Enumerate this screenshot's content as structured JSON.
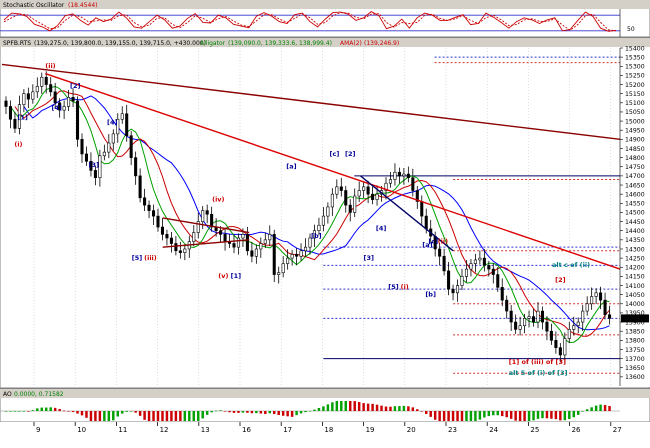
{
  "panels": {
    "stochastic": {
      "title": "Stochastic Oscillator",
      "value": "(18.4544)",
      "levels": [
        "50"
      ],
      "k_line": [
        62,
        88,
        85,
        75,
        45,
        35,
        20,
        40,
        78,
        85,
        60,
        42,
        70,
        55,
        65,
        92,
        70,
        35,
        30,
        55,
        80,
        62,
        30,
        38,
        68,
        86,
        52,
        50,
        80,
        70,
        45,
        38,
        32,
        76,
        90,
        76,
        55,
        48,
        82,
        88,
        55,
        35,
        65,
        90,
        92,
        84,
        60,
        70,
        94,
        78,
        28,
        38,
        65,
        30,
        70,
        88,
        80,
        60,
        60,
        72,
        82,
        44,
        48,
        88,
        72,
        52,
        30,
        55,
        70,
        62,
        48,
        62,
        70,
        20,
        25,
        60,
        92,
        75,
        30,
        18,
        22
      ],
      "d_line": [
        55,
        70,
        85,
        82,
        62,
        45,
        28,
        32,
        60,
        80,
        75,
        55,
        58,
        62,
        60,
        78,
        82,
        52,
        35,
        42,
        68,
        70,
        45,
        32,
        52,
        78,
        68,
        52,
        66,
        75,
        58,
        42,
        36,
        58,
        82,
        82,
        65,
        52,
        68,
        85,
        70,
        45,
        52,
        78,
        90,
        88,
        72,
        66,
        84,
        86,
        52,
        34,
        52,
        48,
        52,
        80,
        84,
        68,
        60,
        66,
        78,
        60,
        48,
        70,
        80,
        62,
        40,
        44,
        62,
        66,
        56,
        56,
        66,
        42,
        22,
        44,
        78,
        84,
        52,
        24,
        20
      ]
    },
    "price": {
      "symbol": "SPFB.RTS",
      "ohlc": "(139,275.0, 139,800.0, 139,155.0, 139,715.0, +430.000)",
      "indicators": [
        {
          "name": "Alligator",
          "value": "(139,090.0, 139,333.6, 138,999.4)",
          "color": "#008000"
        },
        {
          "name": "AMA(2)",
          "value": "(139,246.9)",
          "color": "#cc0000"
        }
      ]
    },
    "ao": {
      "title": "AO",
      "values": "0.0000, 0.71582"
    }
  },
  "chart_data": {
    "type": "candlestick",
    "x_ticks": [
      "9",
      "10",
      "11",
      "12",
      "13",
      "16",
      "17",
      "18",
      "19",
      "20",
      "23",
      "24",
      "25",
      "26",
      "27"
    ],
    "price_axis": {
      "min": 13550,
      "max": 15400,
      "step": 50
    },
    "price_ticks": [
      15400,
      15350,
      15300,
      15250,
      15200,
      15150,
      15100,
      15050,
      15000,
      14950,
      14900,
      14850,
      14800,
      14750,
      14700,
      14650,
      14600,
      14550,
      14500,
      14450,
      14400,
      14350,
      14300,
      14250,
      14200,
      14150,
      14100,
      14050,
      14000,
      13950,
      13900,
      13850,
      13800,
      13750,
      13700,
      13650,
      13600
    ],
    "closes": [
      15080,
      15010,
      14960,
      15090,
      15150,
      15120,
      15160,
      15190,
      15240,
      15200,
      15160,
      15100,
      15060,
      15080,
      15130,
      15110,
      14900,
      14820,
      14780,
      14730,
      14690,
      14810,
      14830,
      14880,
      14930,
      15010,
      15040,
      14920,
      14800,
      14700,
      14580,
      14540,
      14510,
      14480,
      14420,
      14380,
      14360,
      14330,
      14290,
      14280,
      14300,
      14340,
      14390,
      14450,
      14510,
      14490,
      14420,
      14400,
      14380,
      14340,
      14330,
      14310,
      14360,
      14380,
      14290,
      14260,
      14300,
      14330,
      14350,
      14380,
      14160,
      14170,
      14220,
      14250,
      14270,
      14260,
      14290,
      14310,
      14360,
      14400,
      14430,
      14480,
      14530,
      14600,
      14640,
      14620,
      14540,
      14500,
      14590,
      14620,
      14640,
      14600,
      14570,
      14600,
      14620,
      14660,
      14680,
      14720,
      14700,
      14710,
      14690,
      14620,
      14560,
      14480,
      14410,
      14370,
      14300,
      14260,
      14180,
      14080,
      14060,
      14100,
      14150,
      14190,
      14220,
      14240,
      14250,
      14210,
      14190,
      14160,
      14090,
      14020,
      13960,
      13900,
      13860,
      13880,
      13920,
      13930,
      13900,
      13960,
      13900,
      13850,
      13800,
      13760,
      13720,
      13810,
      13860,
      13880,
      13900,
      13960,
      14000,
      14040,
      14060,
      14020,
      13940,
      13920
    ],
    "fib_levels": [
      {
        "price": 15350,
        "color": "#3333cc",
        "style": "dashed",
        "from": 0.7
      },
      {
        "price": 15320,
        "color": "#cc3333",
        "style": "dashed",
        "from": 0.7
      },
      {
        "price": 14700,
        "color": "#000066",
        "style": "solid",
        "from": 0.57
      },
      {
        "price": 14680,
        "color": "#cc3333",
        "style": "dashed",
        "from": 0.73
      },
      {
        "price": 14310,
        "color": "#3333cc",
        "style": "dashed",
        "from": 0.52
      },
      {
        "price": 14290,
        "color": "#cc3333",
        "style": "dashed",
        "from": 0.73
      },
      {
        "price": 14210,
        "color": "#3333cc",
        "style": "dashed",
        "from": 0.52
      },
      {
        "price": 14080,
        "color": "#3333cc",
        "style": "dashed",
        "from": 0.52
      },
      {
        "price": 14000,
        "color": "#cc3333",
        "style": "dashed",
        "from": 0.73
      },
      {
        "price": 13920,
        "color": "#3333cc",
        "style": "dashed",
        "from": 0.52
      },
      {
        "price": 13830,
        "color": "#cc3333",
        "style": "dashed",
        "from": 0.73
      },
      {
        "price": 13700,
        "color": "#000066",
        "style": "solid",
        "from": 0.52
      },
      {
        "price": 13620,
        "color": "#cc3333",
        "style": "dashed",
        "from": 0.73
      }
    ],
    "trend_lines": [
      {
        "p1": [
          0,
          15310
        ],
        "p2": [
          1,
          14900
        ],
        "color": "#8b0000"
      },
      {
        "p1": [
          0.07,
          15260
        ],
        "p2": [
          1,
          14190
        ],
        "color": "#dd0000"
      },
      {
        "p1": [
          0.26,
          14470
        ],
        "p2": [
          0.4,
          14390
        ],
        "color": "#8b0000"
      },
      {
        "p1": [
          0.26,
          14310
        ],
        "p2": [
          0.4,
          14350
        ],
        "color": "#8b0000"
      },
      {
        "p1": [
          0.58,
          14700
        ],
        "p2": [
          0.73,
          14290
        ],
        "color": "#000066"
      }
    ],
    "labels": [
      {
        "text": "(ii)",
        "x": 0.07,
        "price": 15290,
        "color": "#cc0000"
      },
      {
        "text": "[2]",
        "x": 0.11,
        "price": 15180,
        "color": "#000099"
      },
      {
        "text": "[4]",
        "x": 0.08,
        "price": 15060,
        "color": "#000099"
      },
      {
        "text": "[1]",
        "x": 0.025,
        "price": 15010,
        "color": "#000099"
      },
      {
        "text": "(i)",
        "x": 0.02,
        "price": 14860,
        "color": "#cc0000"
      },
      {
        "text": "[4]",
        "x": 0.17,
        "price": 14980,
        "color": "#000099"
      },
      {
        "text": "[3]",
        "x": 0.14,
        "price": 14750,
        "color": "#000099"
      },
      {
        "text": "[5]",
        "x": 0.21,
        "price": 14240,
        "color": "#000099"
      },
      {
        "text": "(iii)",
        "x": 0.23,
        "price": 14240,
        "color": "#cc0000"
      },
      {
        "text": "(iv)",
        "x": 0.34,
        "price": 14560,
        "color": "#cc0000"
      },
      {
        "text": "[a]",
        "x": 0.46,
        "price": 14740,
        "color": "#000099"
      },
      {
        "text": "[b]",
        "x": 0.5,
        "price": 14360,
        "color": "#000099"
      },
      {
        "text": "[c]",
        "x": 0.53,
        "price": 14810,
        "color": "#000099"
      },
      {
        "text": "[2]",
        "x": 0.555,
        "price": 14810,
        "color": "#000099"
      },
      {
        "text": "(v)",
        "x": 0.35,
        "price": 14140,
        "color": "#cc0000"
      },
      {
        "text": "[1]",
        "x": 0.37,
        "price": 14140,
        "color": "#000099"
      },
      {
        "text": "[4]",
        "x": 0.605,
        "price": 14400,
        "color": "#000099"
      },
      {
        "text": "[3]",
        "x": 0.585,
        "price": 14240,
        "color": "#000099"
      },
      {
        "text": "[5]",
        "x": 0.625,
        "price": 14080,
        "color": "#000099"
      },
      {
        "text": "(i)",
        "x": 0.645,
        "price": 14080,
        "color": "#cc0000"
      },
      {
        "text": "[a]",
        "x": 0.68,
        "price": 14310,
        "color": "#000099"
      },
      {
        "text": "[c]",
        "x": 0.69,
        "price": 14330,
        "color": "#000099"
      },
      {
        "text": "(ii)",
        "x": 0.705,
        "price": 14330,
        "color": "#cc0000"
      },
      {
        "text": "[b]",
        "x": 0.685,
        "price": 14040,
        "color": "#000099"
      },
      {
        "text": "alt c of (ii)",
        "x": 0.89,
        "price": 14200,
        "color": "#008080"
      },
      {
        "text": "[2]",
        "x": 0.895,
        "price": 14120,
        "color": "#cc0000"
      },
      {
        "text": "[1] of (iii) of [3]",
        "x": 0.82,
        "price": 13670,
        "color": "#cc0000"
      },
      {
        "text": "alt 5 of (i) of [3]",
        "x": 0.82,
        "price": 13610,
        "color": "#008080"
      }
    ],
    "grid": true
  },
  "colors": {
    "stoch_k": "#cc0000",
    "stoch_d": "#cc0000",
    "alligator_jaw": "#0000ff",
    "alligator_teeth": "#cc0000",
    "alligator_lips": "#00a000",
    "ao_up": "#00a000",
    "ao_down": "#cc0000",
    "price_tag_bg": "#000000",
    "header_bg": "#d4d0c8"
  }
}
